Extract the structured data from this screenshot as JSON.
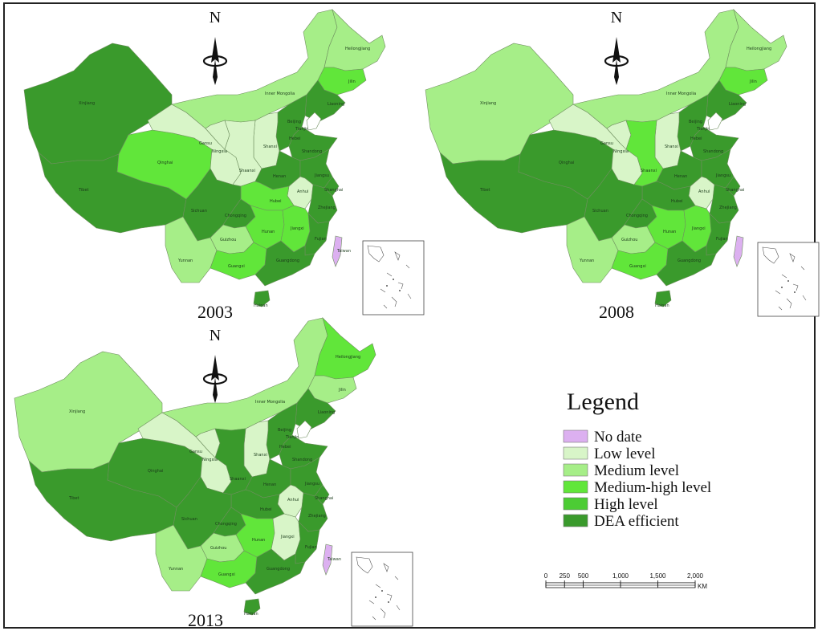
{
  "colors": {
    "no_data": "#dcb0f0",
    "low": "#d8f5c8",
    "medium": "#a6ee88",
    "medium_high": "#61e63a",
    "high": "#4ccc34",
    "dea_efficient": "#3a9a2c",
    "border": "#6f8f5f"
  },
  "north": "N",
  "maps": [
    {
      "year": "2003",
      "labels": [
        "Xinjiang",
        "Tibet",
        "Qinghai",
        "Gansu",
        "Inner Mongolia",
        "Heilongjiang",
        "Jilin",
        "Liaoning",
        "Beijing",
        "Tianjin",
        "Hebei",
        "Shanxi",
        "Shandong",
        "Ningxia",
        "Shaanxi",
        "Henan",
        "Jiangsu",
        "Anhui",
        "Shanghai",
        "Hubei",
        "Sichuan",
        "Chongqing",
        "Zhejiang",
        "Hunan",
        "Jiangxi",
        "Guizhou",
        "Fujian",
        "Yunnan",
        "Guangxi",
        "Guangdong",
        "Taiwan",
        "Hainan"
      ],
      "classes": {
        "xinjiang": "dea_efficient",
        "tibet": "dea_efficient",
        "qinghai": "medium_high",
        "gansu": "low",
        "inner_mongolia": "medium",
        "heilongjiang": "medium",
        "jilin": "medium_high",
        "liaoning": "dea_efficient",
        "beijing_tianjin_hebei": "dea_efficient",
        "shanxi": "low",
        "shandong": "dea_efficient",
        "ningxia": "low",
        "shaanxi": "low",
        "henan": "dea_efficient",
        "jiangsu": "dea_efficient",
        "anhui": "low",
        "shanghai": "dea_efficient",
        "hubei": "medium_high",
        "sichuan": "dea_efficient",
        "chongqing": "dea_efficient",
        "zhejiang": "dea_efficient",
        "hunan": "medium_high",
        "jiangxi": "medium_high",
        "guizhou": "medium",
        "fujian": "dea_efficient",
        "yunnan": "medium",
        "guangxi": "medium_high",
        "guangdong": "dea_efficient",
        "taiwan": "no_data",
        "hainan": "dea_efficient"
      }
    },
    {
      "year": "2008",
      "labels": [
        "Xinjiang",
        "Tibet",
        "Qinghai",
        "Gansu",
        "Inner Mongolia",
        "Heilongjiang",
        "Jilin",
        "Liaoning",
        "Beijing",
        "Tianjin",
        "Hebei",
        "Shanxi",
        "Shandong",
        "Ningxia",
        "Shaanxi",
        "Henan",
        "Jiangsu",
        "Anhui",
        "Shanghai",
        "Hubei",
        "Sichuan",
        "Chongqing",
        "Zhejiang",
        "Hunan",
        "Jiangxi",
        "Guizhou",
        "Fujian",
        "Yunnan",
        "Guangxi",
        "Guangdong",
        "Hainan"
      ],
      "classes": {
        "xinjiang": "medium",
        "tibet": "dea_efficient",
        "qinghai": "dea_efficient",
        "gansu": "low",
        "inner_mongolia": "medium",
        "heilongjiang": "medium",
        "jilin": "medium_high",
        "liaoning": "dea_efficient",
        "beijing_tianjin_hebei": "dea_efficient",
        "shanxi": "low",
        "shandong": "dea_efficient",
        "ningxia": "low",
        "shaanxi": "medium_high",
        "henan": "dea_efficient",
        "jiangsu": "dea_efficient",
        "anhui": "low",
        "shanghai": "dea_efficient",
        "hubei": "dea_efficient",
        "sichuan": "dea_efficient",
        "chongqing": "dea_efficient",
        "zhejiang": "dea_efficient",
        "hunan": "medium_high",
        "jiangxi": "medium_high",
        "guizhou": "medium",
        "fujian": "dea_efficient",
        "yunnan": "medium",
        "guangxi": "medium_high",
        "guangdong": "dea_efficient",
        "taiwan": "no_data",
        "hainan": "dea_efficient"
      }
    },
    {
      "year": "2013",
      "labels": [
        "Xinjiang",
        "Tibet",
        "Qinghai",
        "Gansu",
        "Inner Mongolia",
        "Heilongjiang",
        "Jilin",
        "Liaoning",
        "Beijing",
        "Tianjin",
        "Hebei",
        "Shanxi",
        "Shandong",
        "Ningxia",
        "Shaanxi",
        "Henan",
        "Jiangsu",
        "Anhui",
        "Shanghai",
        "Hubei",
        "Sichuan",
        "Chongqing",
        "Zhejiang",
        "Hunan",
        "Jiangxi",
        "Guizhou",
        "Fujian",
        "Yunnan",
        "Guangxi",
        "Guangdong",
        "Taiwan",
        "Hainan"
      ],
      "classes": {
        "xinjiang": "medium",
        "tibet": "dea_efficient",
        "qinghai": "dea_efficient",
        "gansu": "low",
        "inner_mongolia": "medium",
        "heilongjiang": "medium_high",
        "jilin": "medium",
        "liaoning": "dea_efficient",
        "beijing_tianjin_hebei": "dea_efficient",
        "shanxi": "low",
        "shandong": "dea_efficient",
        "ningxia": "low",
        "shaanxi": "dea_efficient",
        "henan": "dea_efficient",
        "jiangsu": "dea_efficient",
        "anhui": "low",
        "shanghai": "dea_efficient",
        "hubei": "dea_efficient",
        "sichuan": "dea_efficient",
        "chongqing": "dea_efficient",
        "zhejiang": "dea_efficient",
        "hunan": "medium_high",
        "jiangxi": "low",
        "guizhou": "medium",
        "fujian": "dea_efficient",
        "yunnan": "medium",
        "guangxi": "medium_high",
        "guangdong": "dea_efficient",
        "taiwan": "no_data",
        "hainan": "dea_efficient"
      }
    }
  ],
  "legend": {
    "title": "Legend",
    "items": [
      {
        "key": "no_data",
        "label": "No date"
      },
      {
        "key": "low",
        "label": "Low level"
      },
      {
        "key": "medium",
        "label": "Medium level"
      },
      {
        "key": "medium_high",
        "label": "Medium-high level"
      },
      {
        "key": "high",
        "label": "High level"
      },
      {
        "key": "dea_efficient",
        "label": "DEA efficient"
      }
    ]
  },
  "scale_bar": {
    "ticks": [
      "0",
      "250",
      "500",
      "1,000",
      "1,500",
      "2,000"
    ],
    "unit": "KM"
  }
}
